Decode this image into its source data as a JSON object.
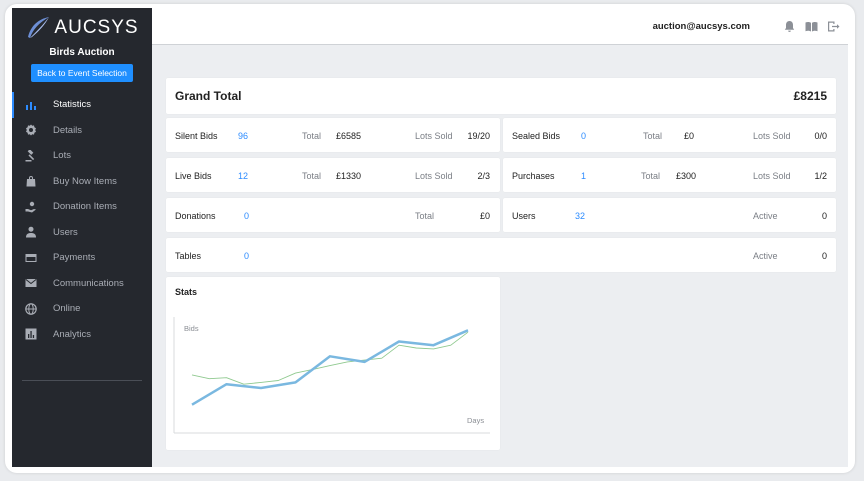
{
  "brand": {
    "name": "AUCSYS"
  },
  "sidebar": {
    "event_name": "Birds Auction",
    "back_label": "Back to Event Selection",
    "items": [
      {
        "label": "Statistics",
        "icon": "bar-chart-icon",
        "active": true
      },
      {
        "label": "Details",
        "icon": "gear-icon"
      },
      {
        "label": "Lots",
        "icon": "gavel-icon"
      },
      {
        "label": "Buy Now Items",
        "icon": "shopping-bag-icon"
      },
      {
        "label": "Donation Items",
        "icon": "donation-hand-icon"
      },
      {
        "label": "Users",
        "icon": "user-icon"
      },
      {
        "label": "Payments",
        "icon": "credit-card-icon"
      },
      {
        "label": "Communications",
        "icon": "envelope-icon"
      },
      {
        "label": "Online",
        "icon": "globe-icon"
      },
      {
        "label": "Analytics",
        "icon": "analytics-icon"
      }
    ]
  },
  "header": {
    "email": "auction@aucsys.com",
    "icons": [
      "bell-icon",
      "book-icon",
      "logout-icon"
    ]
  },
  "grand_total": {
    "label": "Grand Total",
    "value": "£8215"
  },
  "stats": {
    "silent_bids": {
      "label": "Silent Bids",
      "count": "96",
      "total_label": "Total",
      "total": "£6585",
      "lots_label": "Lots Sold",
      "lots": "19/20"
    },
    "sealed_bids": {
      "label": "Sealed Bids",
      "count": "0",
      "total_label": "Total",
      "total": "£0",
      "lots_label": "Lots Sold",
      "lots": "0/0"
    },
    "live_bids": {
      "label": "Live Bids",
      "count": "12",
      "total_label": "Total",
      "total": "£1330",
      "lots_label": "Lots Sold",
      "lots": "2/3"
    },
    "purchases": {
      "label": "Purchases",
      "count": "1",
      "total_label": "Total",
      "total": "£300",
      "lots_label": "Lots Sold",
      "lots": "1/2"
    },
    "donations": {
      "label": "Donations",
      "count": "0",
      "total_label": "Total",
      "total": "£0"
    },
    "users": {
      "label": "Users",
      "count": "32",
      "active_label": "Active",
      "active": "0"
    },
    "tables": {
      "label": "Tables",
      "count": "0",
      "active_label": "Active",
      "active": "0"
    }
  },
  "chart": {
    "title": "Stats"
  },
  "chart_data": {
    "type": "line",
    "title": "Stats",
    "xlabel": "Days",
    "ylabel": "Bids",
    "grid": false,
    "ylim": [
      0,
      100
    ],
    "series": [
      {
        "color": "#7ab8e0",
        "x": [
          0,
          1,
          2,
          3,
          4,
          5,
          6,
          7,
          8
        ],
        "values": [
          10,
          32,
          28,
          34,
          62,
          56,
          78,
          74,
          90
        ]
      },
      {
        "color": "#8fc98f",
        "x": [
          0,
          0.5,
          1,
          1.5,
          2,
          2.5,
          3,
          3.5,
          4,
          4.5,
          5,
          5.5,
          6,
          6.5,
          7,
          7.5,
          8
        ],
        "values": [
          42,
          38,
          39,
          32,
          34,
          36,
          44,
          48,
          52,
          56,
          58,
          60,
          74,
          71,
          70,
          74,
          88
        ]
      }
    ]
  }
}
